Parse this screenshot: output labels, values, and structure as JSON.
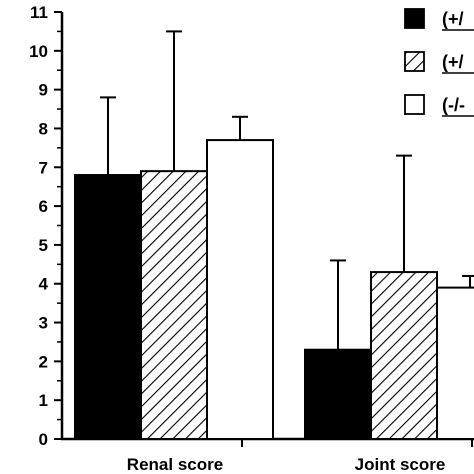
{
  "chart_data": {
    "type": "bar",
    "categories": [
      "Renal score",
      "Joint score"
    ],
    "series": [
      {
        "name": "(+/",
        "fill": "solid",
        "values": [
          6.8,
          2.3
        ],
        "errors": [
          2.0,
          2.3
        ]
      },
      {
        "name": "(+/",
        "fill": "hatched",
        "values": [
          6.9,
          4.3
        ],
        "errors": [
          3.6,
          3.0
        ]
      },
      {
        "name": "(-/-",
        "fill": "open",
        "values": [
          7.7,
          3.9
        ],
        "errors": [
          0.6,
          0.3
        ]
      }
    ],
    "ylim": [
      0,
      11
    ],
    "yticks": [
      0,
      1,
      2,
      3,
      4,
      5,
      6,
      7,
      8,
      9,
      10,
      11
    ],
    "title": "",
    "xlabel": "",
    "ylabel": "",
    "grid": false,
    "legend_position": "top-right",
    "colors": {
      "solid": "#000000",
      "open": "#ffffff",
      "stroke": "#000000"
    }
  }
}
